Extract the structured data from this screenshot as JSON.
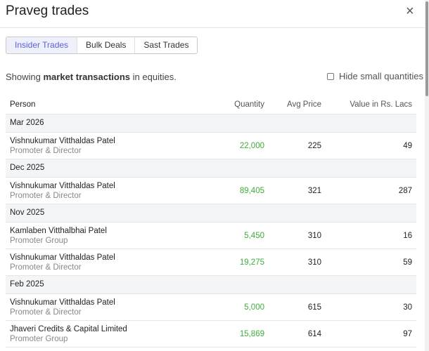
{
  "header": {
    "title": "Praveg trades",
    "close": "×"
  },
  "tabs": {
    "items": [
      "Insider Trades",
      "Bulk Deals",
      "Sast Trades"
    ],
    "active": 0
  },
  "description": {
    "before": "Showing ",
    "bold": "market transactions",
    "after": " in equities."
  },
  "filter": {
    "label": "Hide small quantities",
    "checked": false
  },
  "table": {
    "columns": [
      "Person",
      "Quantity",
      "Avg Price",
      "Value in Rs. Lacs"
    ],
    "groups": [
      {
        "label": "Mar 2026",
        "rows": [
          {
            "person": "Vishnukumar Vitthaldas Patel",
            "role": "Promoter & Director",
            "quantity": "22,000",
            "avg_price": "225",
            "value": "49"
          }
        ]
      },
      {
        "label": "Dec 2025",
        "rows": [
          {
            "person": "Vishnukumar Vitthaldas Patel",
            "role": "Promoter & Director",
            "quantity": "89,405",
            "avg_price": "321",
            "value": "287"
          }
        ]
      },
      {
        "label": "Nov 2025",
        "rows": [
          {
            "person": "Kamlaben Vitthalbhai Patel",
            "role": "Promoter Group",
            "quantity": "5,450",
            "avg_price": "310",
            "value": "16"
          },
          {
            "person": "Vishnukumar Vitthaldas Patel",
            "role": "Promoter & Director",
            "quantity": "19,275",
            "avg_price": "310",
            "value": "59"
          }
        ]
      },
      {
        "label": "Feb 2025",
        "rows": [
          {
            "person": "Vishnukumar Vitthaldas Patel",
            "role": "Promoter & Director",
            "quantity": "5,000",
            "avg_price": "615",
            "value": "30"
          },
          {
            "person": "Jhaveri Credits & Capital Limited",
            "role": "Promoter Group",
            "quantity": "15,869",
            "avg_price": "614",
            "value": "97"
          }
        ]
      }
    ]
  }
}
